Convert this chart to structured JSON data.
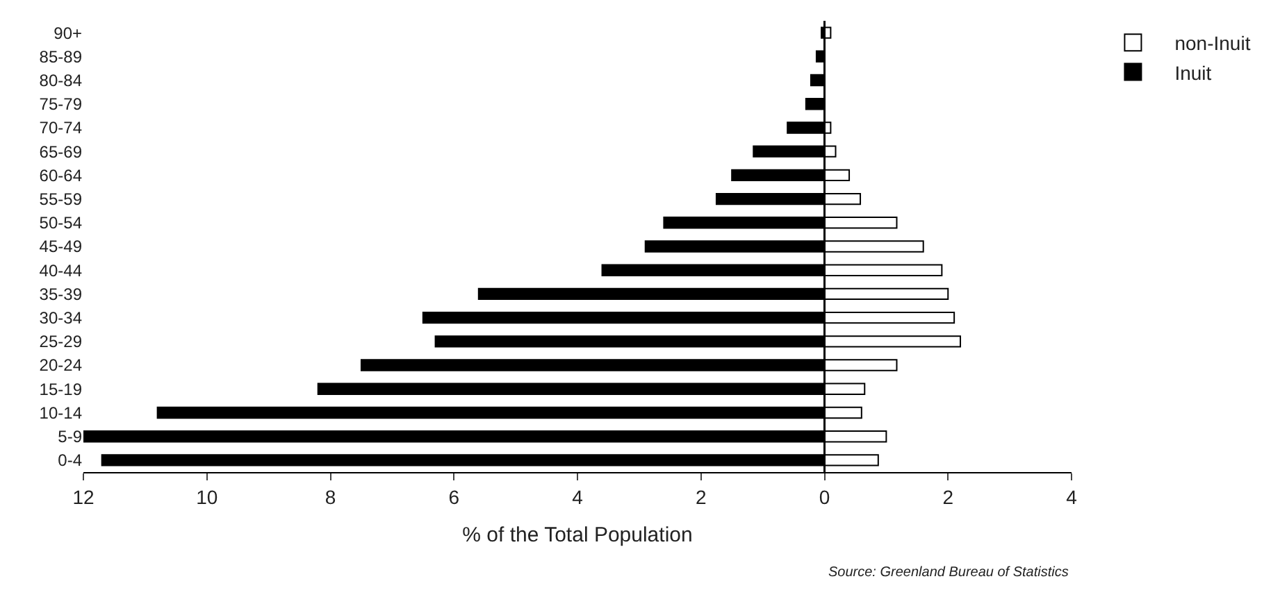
{
  "chart_data": {
    "type": "bar",
    "orientation": "horizontal",
    "xlabel": "% of the Total Population",
    "categories": [
      "90+",
      "85-89",
      "80-84",
      "75-79",
      "70-74",
      "65-69",
      "60-64",
      "55-59",
      "50-54",
      "45-49",
      "40-44",
      "35-39",
      "30-34",
      "25-29",
      "20-24",
      "15-19",
      "10-14",
      "5-9",
      "0-4"
    ],
    "series": [
      {
        "name": "non-Inuit",
        "color": "#ffffff",
        "values": [
          0.1,
          null,
          null,
          null,
          0.1,
          0.18,
          0.4,
          0.58,
          1.17,
          1.6,
          1.9,
          2.0,
          2.1,
          2.2,
          1.17,
          0.65,
          0.6,
          1.0,
          0.87
        ]
      },
      {
        "name": "Inuit",
        "color": "#000000",
        "values": [
          -0.05,
          -0.13,
          -0.22,
          -0.3,
          -0.6,
          -1.15,
          -1.5,
          -1.75,
          -2.6,
          -2.9,
          -3.6,
          -5.6,
          -6.5,
          -6.3,
          -7.5,
          -8.2,
          -10.8,
          -12.0,
          -11.7
        ]
      }
    ],
    "xlim": [
      -12,
      4
    ],
    "xticks": [
      {
        "value": -12,
        "label": "12"
      },
      {
        "value": -10,
        "label": "10"
      },
      {
        "value": -8,
        "label": "8"
      },
      {
        "value": -6,
        "label": "6"
      },
      {
        "value": -4,
        "label": "4"
      },
      {
        "value": -2,
        "label": "2"
      },
      0,
      2,
      4
    ],
    "stacked": true,
    "legend": "top right",
    "ref_lines": [
      {
        "axis": "x",
        "value": 0
      }
    ],
    "annotations": [
      "Source: Greenland Bureau of Statistics"
    ]
  }
}
